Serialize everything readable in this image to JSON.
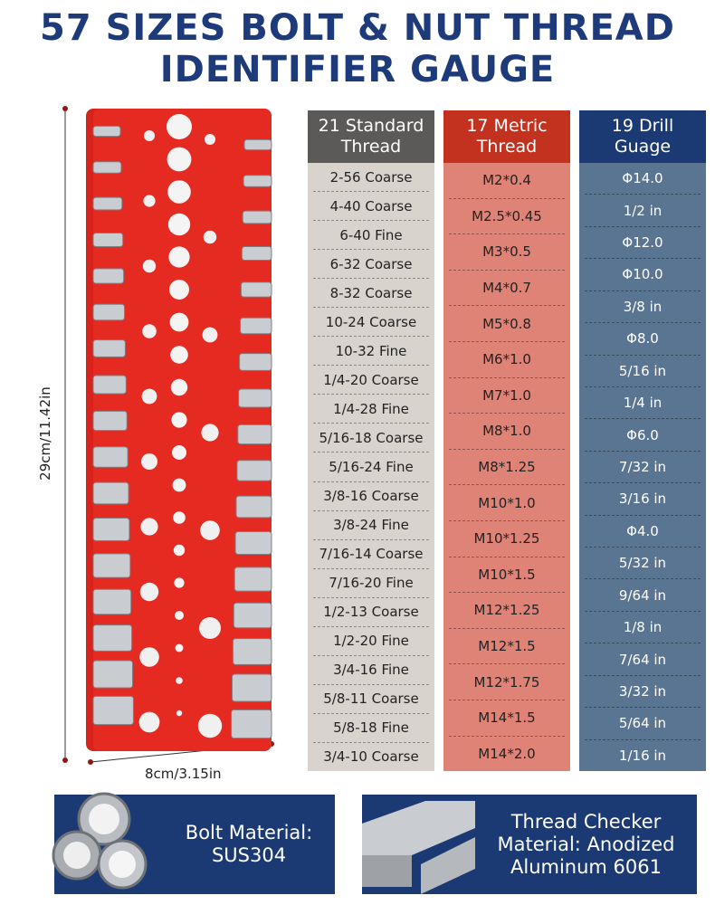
{
  "header": {
    "title_lines": [
      "57 Sizes Bolt & Nut Thread",
      "Identifier Gauge"
    ]
  },
  "dimensions": {
    "height": "29cm/11.42in",
    "width": "8cm/3.15in"
  },
  "columns": [
    {
      "title_lines": [
        "21 Standard",
        "Thread"
      ],
      "items": [
        "2-56 Coarse",
        "4-40 Coarse",
        "6-40 Fine",
        "6-32 Coarse",
        "8-32 Coarse",
        "10-24 Coarse",
        "10-32 Fine",
        "1/4-20 Coarse",
        "1/4-28 Fine",
        "5/16-18 Coarse",
        "5/16-24 Fine",
        "3/8-16 Coarse",
        "3/8-24 Fine",
        "7/16-14 Coarse",
        "7/16-20 Fine",
        "1/2-13 Coarse",
        "1/2-20 Fine",
        "3/4-16 Fine",
        "5/8-11 Coarse",
        "5/8-18 Fine",
        "3/4-10 Coarse"
      ]
    },
    {
      "title_lines": [
        "17 Metric",
        "Thread"
      ],
      "items": [
        "M2*0.4",
        "M2.5*0.45",
        "M3*0.5",
        "M4*0.7",
        "M5*0.8",
        "M6*1.0",
        "M7*1.0",
        "M8*1.0",
        "M8*1.25",
        "M10*1.0",
        "M10*1.25",
        "M10*1.5",
        "M12*1.25",
        "M12*1.5",
        "M12*1.75",
        "M14*1.5",
        "M14*2.0"
      ]
    },
    {
      "title_lines": [
        "19 Drill",
        "Guage"
      ],
      "items": [
        "Φ14.0",
        "1/2 in",
        "Φ12.0",
        "Φ10.0",
        "3/8 in",
        "Φ8.0",
        "5/16 in",
        "1/4 in",
        "Φ6.0",
        "7/32 in",
        "3/16 in",
        "Φ4.0",
        "5/32 in",
        "9/64 in",
        "1/8 in",
        "7/64 in",
        "3/32 in",
        "5/64 in",
        "1/16 in"
      ]
    }
  ],
  "materials": [
    {
      "lines": [
        "Bolt Material:",
        "SUS304"
      ]
    },
    {
      "lines": [
        "Thread Checker",
        "Material: Anodized",
        "Aluminum 6061"
      ]
    }
  ]
}
